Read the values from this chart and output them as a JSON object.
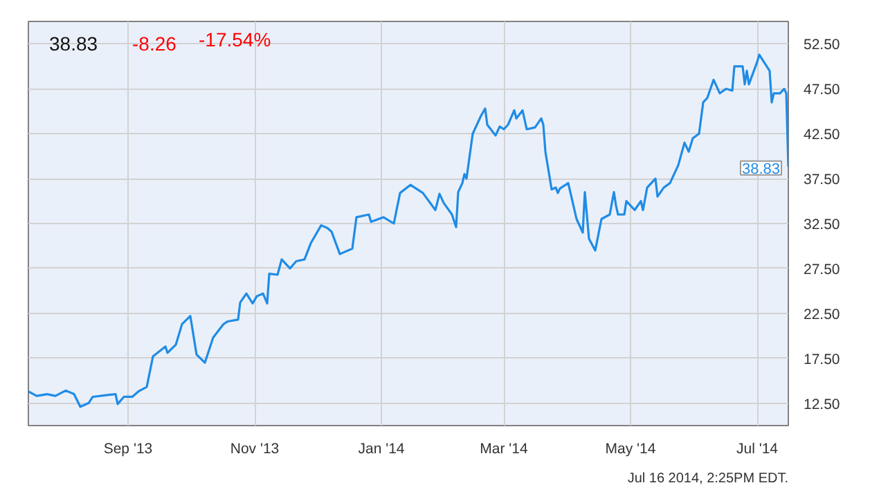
{
  "chart_data": {
    "type": "line",
    "title": "38.83",
    "x": [
      "2013-07-15",
      "2013-07-19",
      "2013-07-24",
      "2013-07-28",
      "2013-08-02",
      "2013-08-06",
      "2013-08-09",
      "2013-08-13",
      "2013-08-15",
      "2013-08-22",
      "2013-08-26",
      "2013-08-27",
      "2013-08-30",
      "2013-09-03",
      "2013-09-06",
      "2013-09-10",
      "2013-09-13",
      "2013-09-19",
      "2013-09-20",
      "2013-09-24",
      "2013-09-27",
      "2013-10-01",
      "2013-10-04",
      "2013-10-08",
      "2013-10-12",
      "2013-10-17",
      "2013-10-19",
      "2013-10-24",
      "2013-10-25",
      "2013-10-28",
      "2013-10-31",
      "2013-11-02",
      "2013-11-05",
      "2013-11-07",
      "2013-11-08",
      "2013-11-12",
      "2013-11-14",
      "2013-11-18",
      "2013-11-21",
      "2013-11-25",
      "2013-11-28",
      "2013-12-03",
      "2013-12-06",
      "2013-12-08",
      "2013-12-12",
      "2013-12-18",
      "2013-12-20",
      "2013-12-26",
      "2013-12-27",
      "2014-01-02",
      "2014-01-07",
      "2014-01-10",
      "2014-01-15",
      "2014-01-21",
      "2014-01-27",
      "2014-01-29",
      "2014-01-31",
      "2014-02-04",
      "2014-02-06",
      "2014-02-07",
      "2014-02-09",
      "2014-02-10",
      "2014-02-11",
      "2014-02-14",
      "2014-02-18",
      "2014-02-20",
      "2014-02-21",
      "2014-02-25",
      "2014-02-27",
      "2014-03-01",
      "2014-03-03",
      "2014-03-06",
      "2014-03-07",
      "2014-03-10",
      "2014-03-12",
      "2014-03-16",
      "2014-03-19",
      "2014-03-20",
      "2014-03-21",
      "2014-03-24",
      "2014-03-26",
      "2014-03-27",
      "2014-03-28",
      "2014-04-01",
      "2014-04-05",
      "2014-04-08",
      "2014-04-09",
      "2014-04-11",
      "2014-04-14",
      "2014-04-17",
      "2014-04-21",
      "2014-04-23",
      "2014-04-24",
      "2014-04-25",
      "2014-04-28",
      "2014-04-29",
      "2014-05-03",
      "2014-05-06",
      "2014-05-07",
      "2014-05-09",
      "2014-05-13",
      "2014-05-14",
      "2014-05-17",
      "2014-05-20",
      "2014-05-24",
      "2014-05-27",
      "2014-05-29",
      "2014-05-31",
      "2014-06-03",
      "2014-06-05",
      "2014-06-07",
      "2014-06-10",
      "2014-06-13",
      "2014-06-16",
      "2014-06-19",
      "2014-06-20",
      "2014-06-24",
      "2014-06-25",
      "2014-06-26",
      "2014-06-27",
      "2014-07-01",
      "2014-07-02",
      "2014-07-07",
      "2014-07-08",
      "2014-07-09",
      "2014-07-12",
      "2014-07-14",
      "2014-07-15",
      "2014-07-16"
    ],
    "series": [
      {
        "color": "#1f8ce6",
        "values": [
          13.8,
          13.3,
          13.5,
          13.3,
          13.9,
          13.5,
          12.1,
          12.5,
          13.2,
          13.4,
          13.5,
          12.4,
          13.2,
          13.2,
          13.8,
          14.3,
          17.7,
          18.8,
          18.1,
          19.0,
          21.3,
          22.2,
          17.9,
          17.0,
          19.8,
          21.3,
          21.6,
          21.8,
          23.7,
          24.7,
          23.6,
          24.4,
          24.7,
          23.6,
          26.9,
          26.8,
          28.5,
          27.5,
          28.3,
          28.5,
          30.3,
          32.3,
          32.0,
          31.6,
          29.1,
          29.7,
          33.2,
          33.5,
          32.7,
          33.2,
          32.5,
          35.9,
          36.8,
          35.9,
          34.0,
          35.8,
          34.8,
          33.5,
          32.1,
          36.0,
          37.0,
          38.0,
          37.5,
          42.5,
          44.5,
          45.3,
          43.5,
          42.3,
          43.3,
          43.0,
          43.5,
          45.1,
          44.2,
          45.1,
          43.0,
          43.2,
          44.2,
          43.5,
          40.5,
          36.3,
          36.5,
          35.9,
          36.4,
          37.0,
          33.0,
          31.5,
          36.0,
          30.8,
          29.5,
          33.0,
          33.5,
          36.0,
          34.5,
          33.5,
          33.5,
          35.0,
          34.0,
          35.0,
          34.0,
          36.5,
          37.5,
          35.5,
          36.5,
          37.0,
          39.0,
          41.5,
          40.5,
          42.0,
          42.5,
          46.0,
          46.5,
          48.5,
          47.0,
          47.5,
          47.3,
          50.0,
          50.0,
          48.0,
          49.5,
          48.0,
          50.5,
          51.3,
          49.5,
          46.0,
          47.0,
          47.0,
          47.5,
          47.0,
          38.83
        ]
      }
    ],
    "xlim": [
      "2013-07-15",
      "2014-07-16"
    ],
    "xticks": [
      {
        "value": "2013-09-01",
        "label": "Sep '13"
      },
      {
        "value": "2013-11-01",
        "label": "Nov '13"
      },
      {
        "value": "2014-01-01",
        "label": "Jan '14"
      },
      {
        "value": "2014-03-01",
        "label": "Mar '14"
      },
      {
        "value": "2014-05-01",
        "label": "May '14"
      },
      {
        "value": "2014-07-01",
        "label": "Jul '14"
      }
    ],
    "ylim": [
      10,
      55
    ],
    "yticks": [
      {
        "value": 12.5,
        "label": "12.50"
      },
      {
        "value": 17.5,
        "label": "17.50"
      },
      {
        "value": 22.5,
        "label": "22.50"
      },
      {
        "value": 27.5,
        "label": "27.50"
      },
      {
        "value": 32.5,
        "label": "32.50"
      },
      {
        "value": 37.5,
        "label": "37.50"
      },
      {
        "value": 42.5,
        "label": "42.50"
      },
      {
        "value": 47.5,
        "label": "47.50"
      },
      {
        "value": 52.5,
        "label": "52.50"
      }
    ],
    "grid": true,
    "marker": "none",
    "line_style": "solid",
    "annotations": [
      "-8.26",
      "-17.54%",
      {
        "text": "38.83",
        "x": "2014-07-16",
        "y": 38.83
      },
      "Jul 16 2014, 2:25PM EDT."
    ]
  }
}
